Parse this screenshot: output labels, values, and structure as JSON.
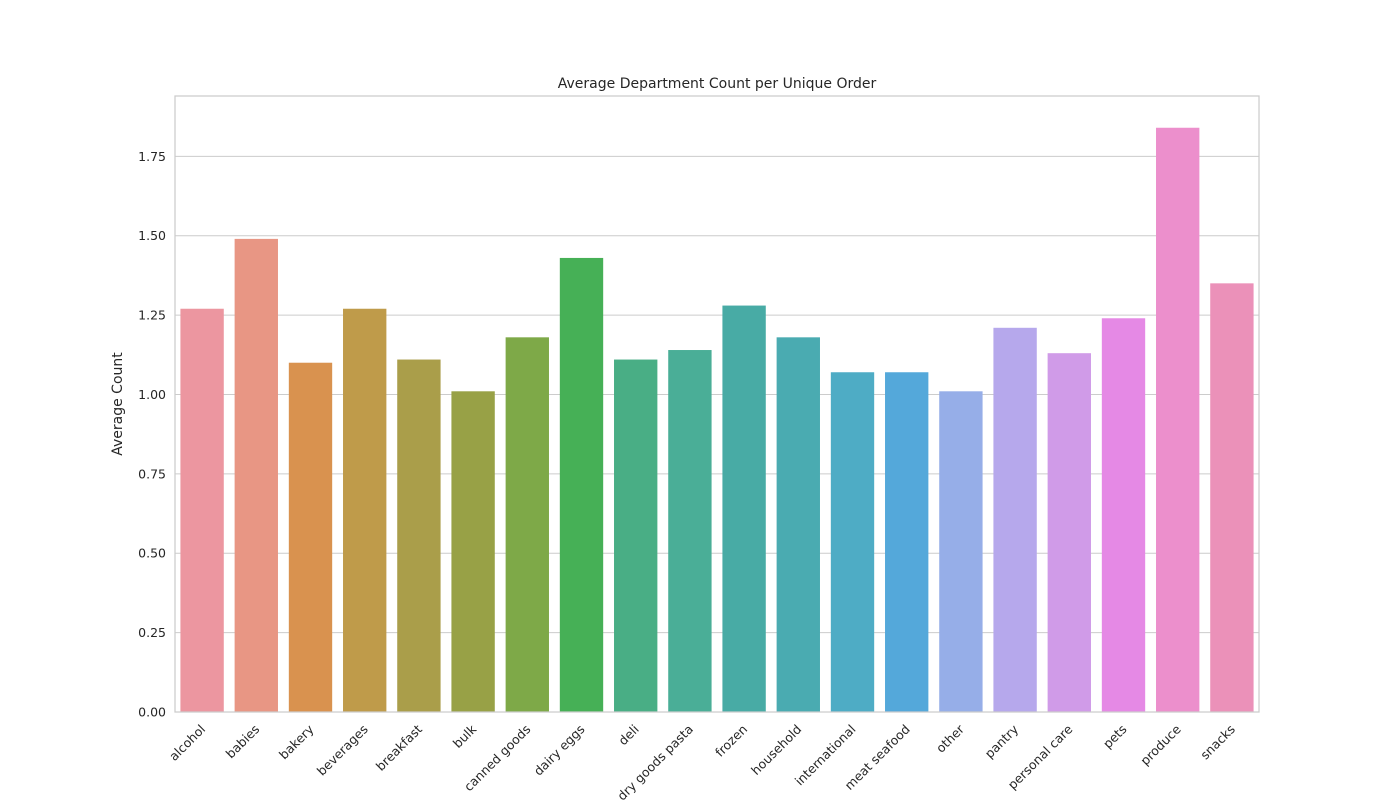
{
  "chart_data": {
    "type": "bar",
    "title": "Average Department Count per Unique Order",
    "xlabel": "",
    "ylabel": "Average Count",
    "ylim": [
      0,
      1.94
    ],
    "yticks": [
      "0.00",
      "0.25",
      "0.50",
      "0.75",
      "1.00",
      "1.25",
      "1.50",
      "1.75"
    ],
    "grid": "horizontal",
    "categories": [
      "alcohol",
      "babies",
      "bakery",
      "beverages",
      "breakfast",
      "bulk",
      "canned goods",
      "dairy eggs",
      "deli",
      "dry goods pasta",
      "frozen",
      "household",
      "international",
      "meat seafood",
      "other",
      "pantry",
      "personal care",
      "pets",
      "produce",
      "snacks"
    ],
    "values": [
      1.27,
      1.49,
      1.1,
      1.27,
      1.11,
      1.01,
      1.18,
      1.43,
      1.11,
      1.14,
      1.28,
      1.18,
      1.07,
      1.07,
      1.01,
      1.21,
      1.13,
      1.24,
      1.84,
      1.35
    ],
    "colors": [
      "#ec96a0",
      "#e89684",
      "#d9924f",
      "#bf9b4a",
      "#aa9e4a",
      "#98a146",
      "#7ea948",
      "#46b056",
      "#49ae85",
      "#4aae97",
      "#48aba5",
      "#4aabb1",
      "#4eacc5",
      "#54a8da",
      "#96aee8",
      "#b6a8ec",
      "#d09be8",
      "#e589e5",
      "#ec8fcc",
      "#eb91b9"
    ]
  }
}
